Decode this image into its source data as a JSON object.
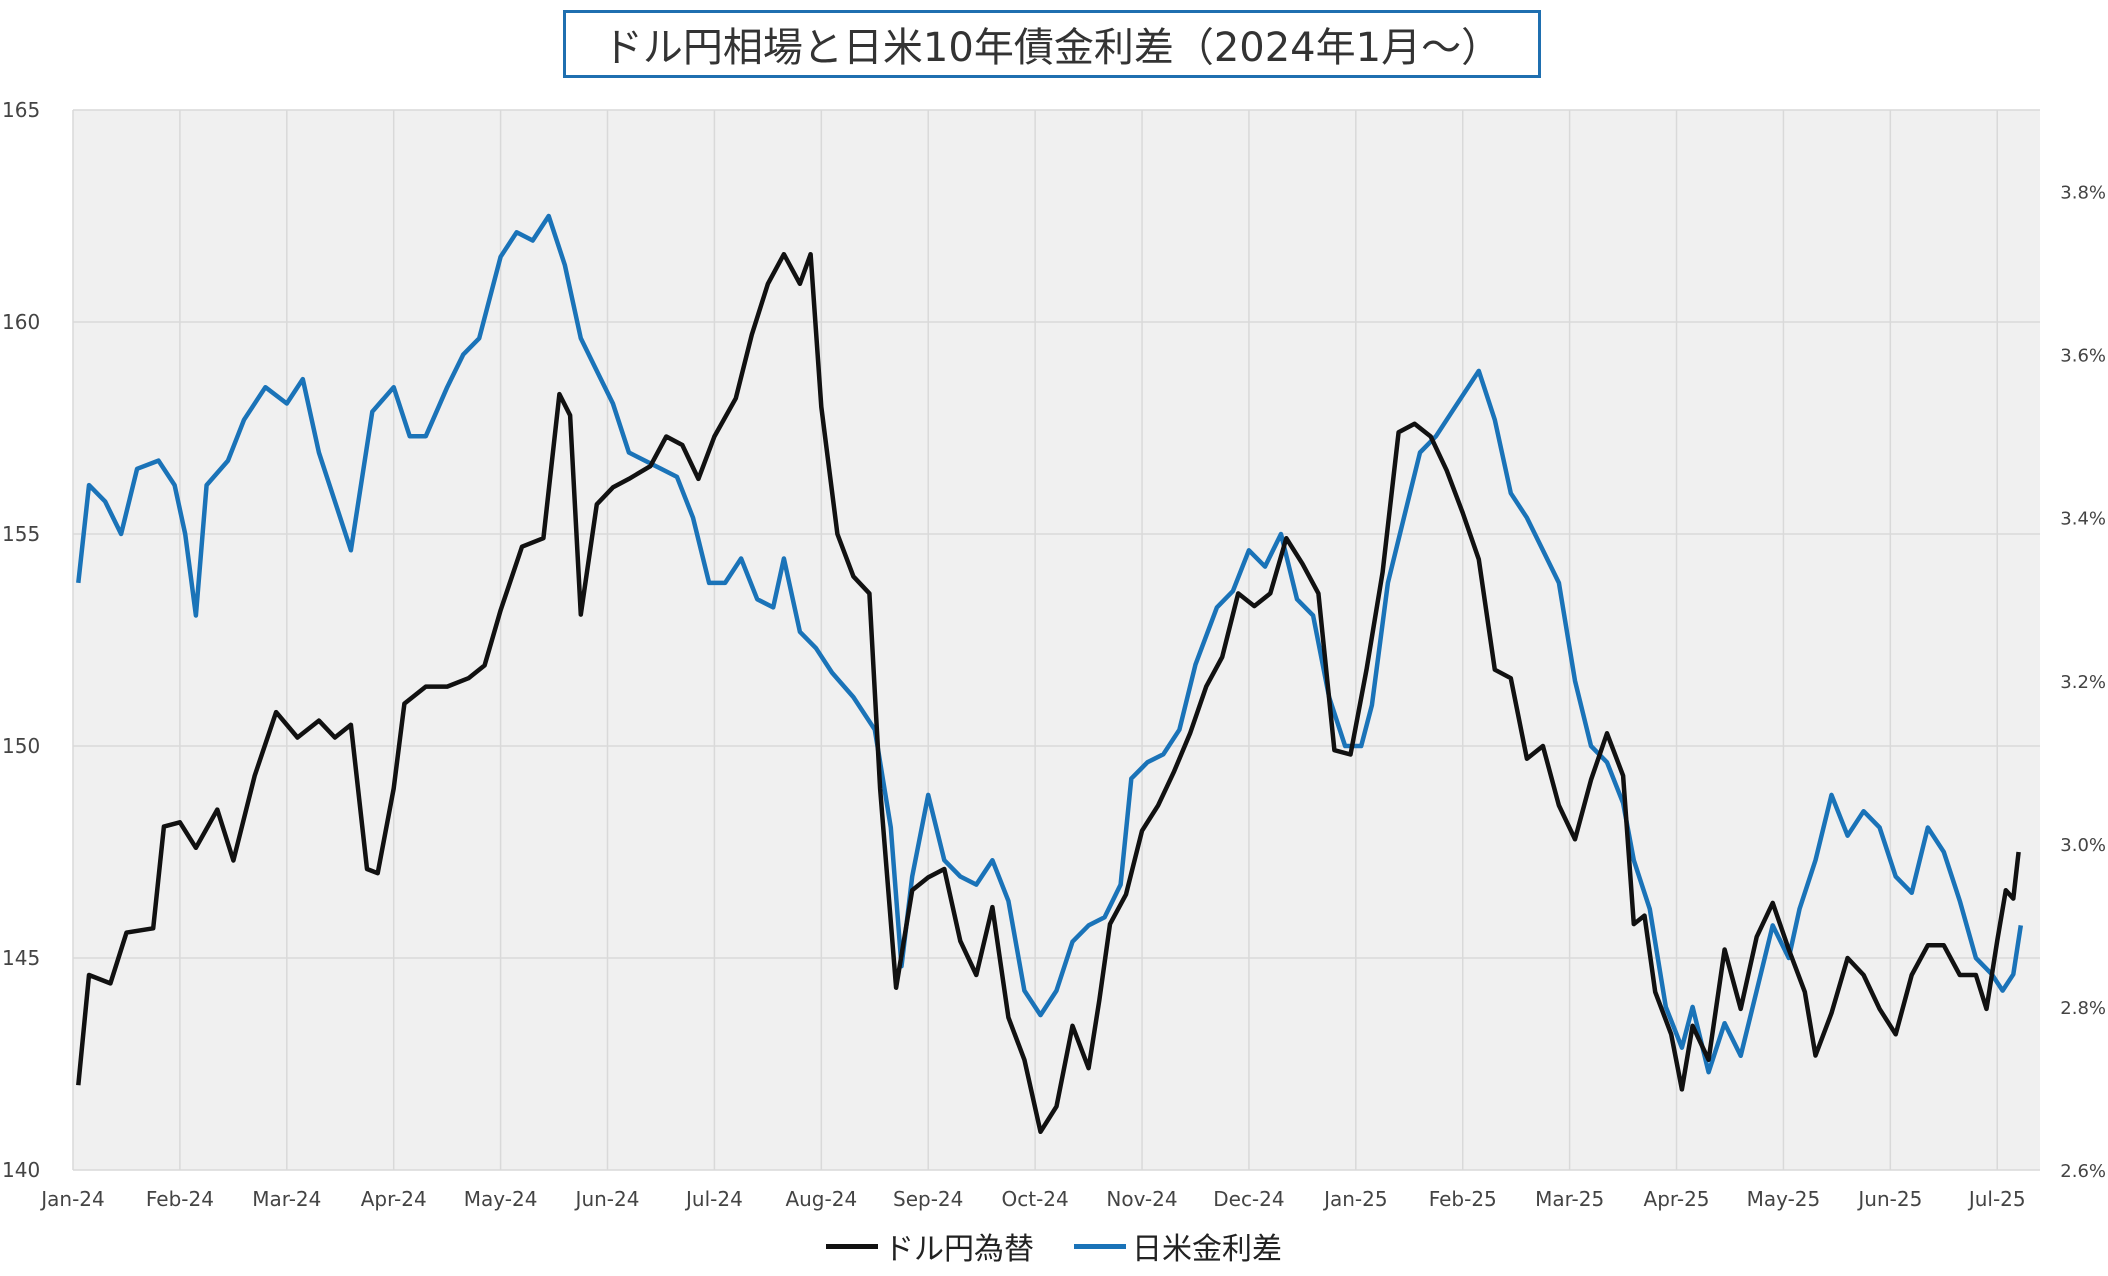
{
  "colors": {
    "usdjpy": "#111111",
    "spread": "#1a73b8",
    "plot_bg": "#f0f0f0",
    "grid": "#d9d9d9"
  },
  "chart_data": {
    "type": "line",
    "title": "ドル円相場と日米10年債金利差（2024年1月～）",
    "x_labels": [
      "Jan-24",
      "Feb-24",
      "Mar-24",
      "Apr-24",
      "May-24",
      "Jun-24",
      "Jul-24",
      "Aug-24",
      "Sep-24",
      "Oct-24",
      "Nov-24",
      "Dec-24",
      "Jan-25",
      "Feb-25",
      "Mar-25",
      "Apr-25",
      "May-25",
      "Jun-25",
      "Jul-25"
    ],
    "y_left": {
      "min": 140,
      "max": 165,
      "ticks": [
        "140",
        "145",
        "150",
        "155",
        "160",
        "165"
      ]
    },
    "y_right": {
      "min": 2.6,
      "max": 3.9,
      "ticks": [
        "2.6%",
        "2.8%",
        "3.0%",
        "3.2%",
        "3.4%",
        "3.6%",
        "3.8%"
      ]
    },
    "grid": true,
    "legend_position": "bottom",
    "series": [
      {
        "name": "ドル円為替",
        "axis": "left",
        "color": "#111111",
        "points": [
          [
            0.05,
            142
          ],
          [
            0.15,
            144.6
          ],
          [
            0.35,
            144.4
          ],
          [
            0.5,
            145.6
          ],
          [
            0.75,
            145.7
          ],
          [
            0.85,
            148.1
          ],
          [
            1.0,
            148.2
          ],
          [
            1.15,
            147.6
          ],
          [
            1.35,
            148.5
          ],
          [
            1.5,
            147.3
          ],
          [
            1.7,
            149.3
          ],
          [
            1.9,
            150.8
          ],
          [
            2.1,
            150.2
          ],
          [
            2.3,
            150.6
          ],
          [
            2.45,
            150.2
          ],
          [
            2.6,
            150.5
          ],
          [
            2.75,
            147.1
          ],
          [
            2.85,
            147.0
          ],
          [
            3.0,
            149.0
          ],
          [
            3.1,
            151.0
          ],
          [
            3.3,
            151.4
          ],
          [
            3.5,
            151.4
          ],
          [
            3.7,
            151.6
          ],
          [
            3.85,
            151.9
          ],
          [
            4.0,
            153.2
          ],
          [
            4.2,
            154.7
          ],
          [
            4.4,
            154.9
          ],
          [
            4.55,
            158.3
          ],
          [
            4.65,
            157.8
          ],
          [
            4.75,
            153.1
          ],
          [
            4.9,
            155.7
          ],
          [
            5.05,
            156.1
          ],
          [
            5.2,
            156.3
          ],
          [
            5.4,
            156.6
          ],
          [
            5.55,
            157.3
          ],
          [
            5.7,
            157.1
          ],
          [
            5.85,
            156.3
          ],
          [
            6.0,
            157.3
          ],
          [
            6.2,
            158.2
          ],
          [
            6.35,
            159.7
          ],
          [
            6.5,
            160.9
          ],
          [
            6.65,
            161.6
          ],
          [
            6.8,
            160.9
          ],
          [
            6.9,
            161.6
          ],
          [
            7.0,
            158.0
          ],
          [
            7.15,
            155.0
          ],
          [
            7.3,
            154.0
          ],
          [
            7.45,
            153.6
          ],
          [
            7.55,
            149.0
          ],
          [
            7.7,
            144.3
          ],
          [
            7.85,
            146.6
          ],
          [
            8.0,
            146.9
          ],
          [
            8.15,
            147.1
          ],
          [
            8.3,
            145.4
          ],
          [
            8.45,
            144.6
          ],
          [
            8.6,
            146.2
          ],
          [
            8.75,
            143.6
          ],
          [
            8.9,
            142.6
          ],
          [
            9.05,
            140.9
          ],
          [
            9.2,
            141.5
          ],
          [
            9.35,
            143.4
          ],
          [
            9.5,
            142.4
          ],
          [
            9.6,
            144.0
          ],
          [
            9.7,
            145.8
          ],
          [
            9.85,
            146.5
          ],
          [
            10.0,
            148.0
          ],
          [
            10.15,
            148.6
          ],
          [
            10.3,
            149.4
          ],
          [
            10.45,
            150.3
          ],
          [
            10.6,
            151.4
          ],
          [
            10.75,
            152.1
          ],
          [
            10.9,
            153.6
          ],
          [
            11.05,
            153.3
          ],
          [
            11.2,
            153.6
          ],
          [
            11.35,
            154.9
          ],
          [
            11.5,
            154.3
          ],
          [
            11.65,
            153.6
          ],
          [
            11.8,
            149.9
          ],
          [
            11.95,
            149.8
          ],
          [
            12.1,
            151.8
          ],
          [
            12.25,
            154.1
          ],
          [
            12.4,
            157.4
          ],
          [
            12.55,
            157.6
          ],
          [
            12.7,
            157.3
          ],
          [
            12.85,
            156.5
          ],
          [
            13.0,
            155.5
          ],
          [
            13.15,
            154.4
          ],
          [
            13.3,
            151.8
          ],
          [
            13.45,
            151.6
          ],
          [
            13.6,
            149.7
          ],
          [
            13.75,
            150.0
          ],
          [
            13.9,
            148.6
          ],
          [
            14.05,
            147.8
          ],
          [
            14.2,
            149.2
          ],
          [
            14.35,
            150.3
          ],
          [
            14.5,
            149.3
          ],
          [
            14.6,
            145.8
          ],
          [
            14.7,
            146.0
          ],
          [
            14.8,
            144.2
          ],
          [
            14.95,
            143.2
          ],
          [
            15.05,
            141.9
          ],
          [
            15.15,
            143.4
          ],
          [
            15.3,
            142.6
          ],
          [
            15.45,
            145.2
          ],
          [
            15.6,
            143.8
          ],
          [
            15.75,
            145.5
          ],
          [
            15.9,
            146.3
          ],
          [
            16.05,
            145.2
          ],
          [
            16.2,
            144.2
          ],
          [
            16.3,
            142.7
          ],
          [
            16.45,
            143.7
          ],
          [
            16.6,
            145.0
          ],
          [
            16.75,
            144.6
          ],
          [
            16.9,
            143.8
          ],
          [
            17.05,
            143.2
          ],
          [
            17.2,
            144.6
          ],
          [
            17.35,
            145.3
          ],
          [
            17.5,
            145.3
          ],
          [
            17.65,
            144.6
          ],
          [
            17.8,
            144.6
          ],
          [
            17.9,
            143.8
          ],
          [
            18.0,
            145.4
          ],
          [
            18.08,
            146.6
          ],
          [
            18.15,
            146.4
          ],
          [
            18.2,
            147.5
          ]
        ]
      },
      {
        "name": "日米金利差",
        "axis": "right",
        "color": "#1a73b8",
        "points": [
          [
            0.05,
            3.32
          ],
          [
            0.15,
            3.44
          ],
          [
            0.3,
            3.42
          ],
          [
            0.45,
            3.38
          ],
          [
            0.6,
            3.46
          ],
          [
            0.8,
            3.47
          ],
          [
            0.95,
            3.44
          ],
          [
            1.05,
            3.38
          ],
          [
            1.15,
            3.28
          ],
          [
            1.25,
            3.44
          ],
          [
            1.45,
            3.47
          ],
          [
            1.6,
            3.52
          ],
          [
            1.8,
            3.56
          ],
          [
            2.0,
            3.54
          ],
          [
            2.15,
            3.57
          ],
          [
            2.3,
            3.48
          ],
          [
            2.45,
            3.42
          ],
          [
            2.6,
            3.36
          ],
          [
            2.8,
            3.53
          ],
          [
            3.0,
            3.56
          ],
          [
            3.15,
            3.5
          ],
          [
            3.3,
            3.5
          ],
          [
            3.5,
            3.56
          ],
          [
            3.65,
            3.6
          ],
          [
            3.8,
            3.62
          ],
          [
            4.0,
            3.72
          ],
          [
            4.15,
            3.75
          ],
          [
            4.3,
            3.74
          ],
          [
            4.45,
            3.77
          ],
          [
            4.6,
            3.71
          ],
          [
            4.75,
            3.62
          ],
          [
            4.9,
            3.58
          ],
          [
            5.05,
            3.54
          ],
          [
            5.2,
            3.48
          ],
          [
            5.35,
            3.47
          ],
          [
            5.5,
            3.46
          ],
          [
            5.65,
            3.45
          ],
          [
            5.8,
            3.4
          ],
          [
            5.95,
            3.32
          ],
          [
            6.1,
            3.32
          ],
          [
            6.25,
            3.35
          ],
          [
            6.4,
            3.3
          ],
          [
            6.55,
            3.29
          ],
          [
            6.65,
            3.35
          ],
          [
            6.8,
            3.26
          ],
          [
            6.95,
            3.24
          ],
          [
            7.1,
            3.21
          ],
          [
            7.3,
            3.18
          ],
          [
            7.5,
            3.14
          ],
          [
            7.65,
            3.02
          ],
          [
            7.75,
            2.85
          ],
          [
            7.85,
            2.96
          ],
          [
            8.0,
            3.06
          ],
          [
            8.15,
            2.98
          ],
          [
            8.3,
            2.96
          ],
          [
            8.45,
            2.95
          ],
          [
            8.6,
            2.98
          ],
          [
            8.75,
            2.93
          ],
          [
            8.9,
            2.82
          ],
          [
            9.05,
            2.79
          ],
          [
            9.2,
            2.82
          ],
          [
            9.35,
            2.88
          ],
          [
            9.5,
            2.9
          ],
          [
            9.65,
            2.91
          ],
          [
            9.8,
            2.95
          ],
          [
            9.9,
            3.08
          ],
          [
            10.05,
            3.1
          ],
          [
            10.2,
            3.11
          ],
          [
            10.35,
            3.14
          ],
          [
            10.5,
            3.22
          ],
          [
            10.7,
            3.29
          ],
          [
            10.85,
            3.31
          ],
          [
            11.0,
            3.36
          ],
          [
            11.15,
            3.34
          ],
          [
            11.3,
            3.38
          ],
          [
            11.45,
            3.3
          ],
          [
            11.6,
            3.28
          ],
          [
            11.75,
            3.18
          ],
          [
            11.9,
            3.12
          ],
          [
            12.05,
            3.12
          ],
          [
            12.15,
            3.17
          ],
          [
            12.3,
            3.32
          ],
          [
            12.45,
            3.4
          ],
          [
            12.6,
            3.48
          ],
          [
            12.75,
            3.5
          ],
          [
            12.9,
            3.53
          ],
          [
            13.05,
            3.56
          ],
          [
            13.15,
            3.58
          ],
          [
            13.3,
            3.52
          ],
          [
            13.45,
            3.43
          ],
          [
            13.6,
            3.4
          ],
          [
            13.75,
            3.36
          ],
          [
            13.9,
            3.32
          ],
          [
            14.05,
            3.2
          ],
          [
            14.2,
            3.12
          ],
          [
            14.35,
            3.1
          ],
          [
            14.5,
            3.05
          ],
          [
            14.6,
            2.98
          ],
          [
            14.75,
            2.92
          ],
          [
            14.9,
            2.8
          ],
          [
            15.05,
            2.75
          ],
          [
            15.15,
            2.8
          ],
          [
            15.3,
            2.72
          ],
          [
            15.45,
            2.78
          ],
          [
            15.6,
            2.74
          ],
          [
            15.75,
            2.82
          ],
          [
            15.9,
            2.9
          ],
          [
            16.05,
            2.86
          ],
          [
            16.15,
            2.92
          ],
          [
            16.3,
            2.98
          ],
          [
            16.45,
            3.06
          ],
          [
            16.6,
            3.01
          ],
          [
            16.75,
            3.04
          ],
          [
            16.9,
            3.02
          ],
          [
            17.05,
            2.96
          ],
          [
            17.2,
            2.94
          ],
          [
            17.35,
            3.02
          ],
          [
            17.5,
            2.99
          ],
          [
            17.65,
            2.93
          ],
          [
            17.8,
            2.86
          ],
          [
            17.95,
            2.84
          ],
          [
            18.05,
            2.82
          ],
          [
            18.15,
            2.84
          ],
          [
            18.22,
            2.9
          ]
        ]
      }
    ]
  },
  "legend": {
    "usdjpy_label": "ドル円為替",
    "spread_label": "日米金利差"
  }
}
